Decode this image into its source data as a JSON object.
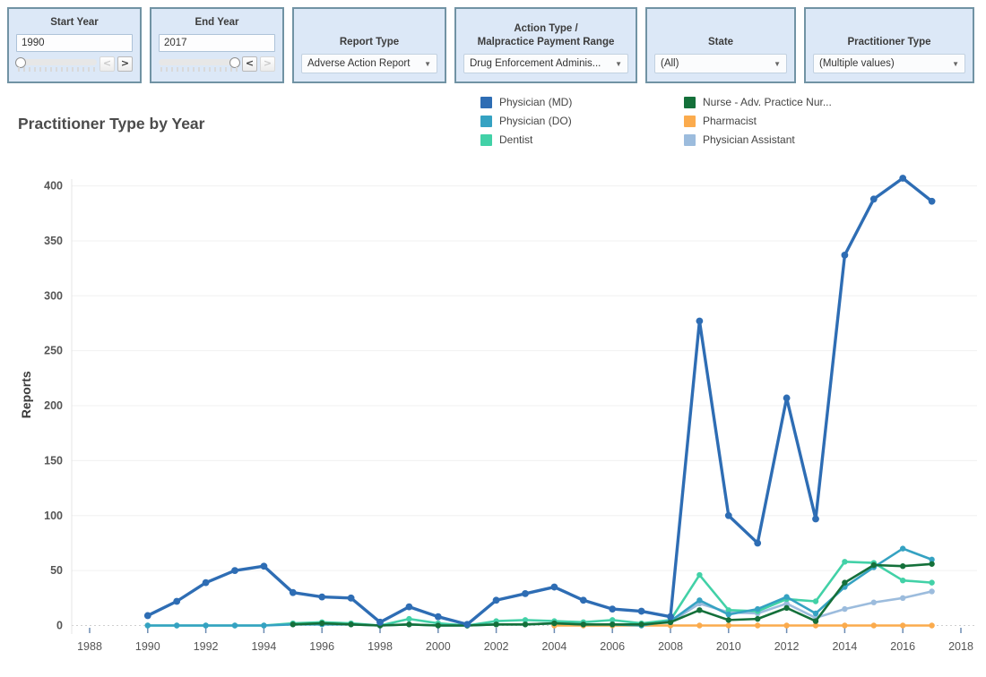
{
  "filters": {
    "start_year": {
      "title": "Start Year",
      "value": "1990",
      "prev_label": "<",
      "next_label": ">"
    },
    "end_year": {
      "title": "End Year",
      "value": "2017",
      "prev_label": "<",
      "next_label": ">"
    },
    "report_type": {
      "title": "Report Type",
      "value": "Adverse Action Report"
    },
    "action_type": {
      "title_line1": "Action Type /",
      "title_line2": "Malpractice Payment Range",
      "value": "Drug Enforcement Adminis..."
    },
    "state": {
      "title": "State",
      "value": "(All)"
    },
    "practitioner_type": {
      "title": "Practitioner Type",
      "value": "(Multiple values)"
    }
  },
  "chart_data": {
    "type": "line",
    "title": "Practitioner Type by Year",
    "ylabel": "Reports",
    "ylim": [
      0,
      420
    ],
    "yticks": [
      0,
      50,
      100,
      150,
      200,
      250,
      300,
      350,
      400
    ],
    "xticks": [
      1988,
      1990,
      1992,
      1994,
      1996,
      1998,
      2000,
      2002,
      2004,
      2006,
      2008,
      2010,
      2012,
      2014,
      2016,
      2018
    ],
    "grid": true,
    "legend_position": "top",
    "x": [
      1990,
      1991,
      1992,
      1993,
      1994,
      1995,
      1996,
      1997,
      1998,
      1999,
      2000,
      2001,
      2002,
      2003,
      2004,
      2005,
      2006,
      2007,
      2008,
      2009,
      2010,
      2011,
      2012,
      2013,
      2014,
      2015,
      2016,
      2017
    ],
    "series": [
      {
        "name": "Physician (MD)",
        "color": "#2e6db4",
        "values": [
          9,
          22,
          39,
          50,
          54,
          30,
          26,
          25,
          3,
          17,
          8,
          1,
          23,
          29,
          35,
          23,
          15,
          13,
          8,
          277,
          100,
          75,
          207,
          97,
          337,
          388,
          407,
          386
        ]
      },
      {
        "name": "Physician (DO)",
        "color": "#35a2c2",
        "values": [
          0,
          0,
          0,
          0,
          0,
          1,
          1,
          1,
          0,
          1,
          0,
          0,
          1,
          1,
          2,
          1,
          1,
          0,
          4,
          23,
          10,
          15,
          26,
          11,
          35,
          53,
          70,
          60
        ]
      },
      {
        "name": "Dentist",
        "color": "#42d1a7",
        "values": [
          0,
          0,
          0,
          0,
          0,
          2,
          3,
          2,
          0,
          6,
          2,
          0,
          4,
          5,
          4,
          3,
          5,
          2,
          5,
          46,
          14,
          13,
          24,
          22,
          58,
          57,
          41,
          39
        ]
      },
      {
        "name": "Nurse - Adv. Practice Nur...",
        "color": "#14703a",
        "values": [
          null,
          null,
          null,
          null,
          null,
          1,
          2,
          1,
          0,
          1,
          0,
          0,
          1,
          1,
          2,
          1,
          1,
          1,
          3,
          14,
          5,
          6,
          16,
          4,
          39,
          55,
          54,
          56
        ]
      },
      {
        "name": "Pharmacist",
        "color": "#fbab4d",
        "values": [
          null,
          null,
          null,
          null,
          null,
          null,
          null,
          null,
          null,
          null,
          null,
          null,
          null,
          null,
          0,
          0,
          0,
          0,
          0,
          0,
          0,
          0,
          0,
          0,
          0,
          0,
          0,
          0
        ]
      },
      {
        "name": "Physician Assistant",
        "color": "#9cbcdd",
        "values": [
          null,
          null,
          null,
          null,
          null,
          null,
          null,
          null,
          null,
          null,
          null,
          null,
          null,
          null,
          null,
          null,
          null,
          null,
          3,
          20,
          12,
          11,
          20,
          7,
          15,
          21,
          25,
          31
        ]
      }
    ],
    "draw_order": [
      "Pharmacist",
      "Physician Assistant",
      "Dentist",
      "Physician (DO)",
      "Nurse - Adv. Practice Nur...",
      "Physician (MD)"
    ]
  }
}
